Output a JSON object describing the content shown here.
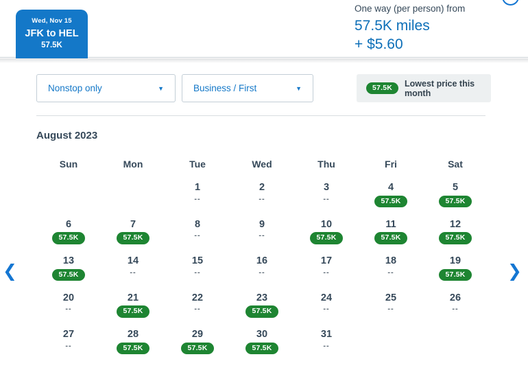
{
  "header": {
    "selected_tab": {
      "date": "Wed, Nov 15",
      "route": "JFK to HEL",
      "price": "57.5K"
    },
    "price_summary": {
      "label": "One way (per person) from",
      "miles": "57.5K miles",
      "fees": "+ $5.60"
    },
    "info_icon": "info-icon"
  },
  "filters": {
    "stops_select": {
      "value": "Nonstop only",
      "caret": "▼"
    },
    "cabin_select": {
      "value": "Business / First",
      "caret": "▼"
    },
    "legend": {
      "badge": "57.5K",
      "label": "Lowest price this month"
    }
  },
  "calendar": {
    "month_title": "August 2023",
    "day_headers": [
      "Sun",
      "Mon",
      "Tue",
      "Wed",
      "Thu",
      "Fri",
      "Sat"
    ],
    "award_value": "57.5K",
    "empty_value": "--",
    "weeks": [
      [
        null,
        null,
        {
          "day": "1",
          "award": false
        },
        {
          "day": "2",
          "award": false
        },
        {
          "day": "3",
          "award": false
        },
        {
          "day": "4",
          "award": true
        },
        {
          "day": "5",
          "award": true
        }
      ],
      [
        {
          "day": "6",
          "award": true
        },
        {
          "day": "7",
          "award": true
        },
        {
          "day": "8",
          "award": false
        },
        {
          "day": "9",
          "award": false
        },
        {
          "day": "10",
          "award": true
        },
        {
          "day": "11",
          "award": true
        },
        {
          "day": "12",
          "award": true
        }
      ],
      [
        {
          "day": "13",
          "award": true
        },
        {
          "day": "14",
          "award": false
        },
        {
          "day": "15",
          "award": false
        },
        {
          "day": "16",
          "award": false
        },
        {
          "day": "17",
          "award": false
        },
        {
          "day": "18",
          "award": false
        },
        {
          "day": "19",
          "award": true
        }
      ],
      [
        {
          "day": "20",
          "award": false
        },
        {
          "day": "21",
          "award": true
        },
        {
          "day": "22",
          "award": false
        },
        {
          "day": "23",
          "award": true
        },
        {
          "day": "24",
          "award": false
        },
        {
          "day": "25",
          "award": false
        },
        {
          "day": "26",
          "award": false
        }
      ],
      [
        {
          "day": "27",
          "award": false
        },
        {
          "day": "28",
          "award": true
        },
        {
          "day": "29",
          "award": true
        },
        {
          "day": "30",
          "award": true
        },
        {
          "day": "31",
          "award": false
        },
        null,
        null
      ]
    ]
  },
  "nav": {
    "prev": "❮",
    "next": "❯"
  },
  "colors": {
    "accent_blue": "#1478c8",
    "text_blue": "#0d6fb8",
    "navy_text": "#36495a",
    "award_green": "#1e8532",
    "legend_background": "#edf0f1",
    "divider": "#d8dde0"
  }
}
